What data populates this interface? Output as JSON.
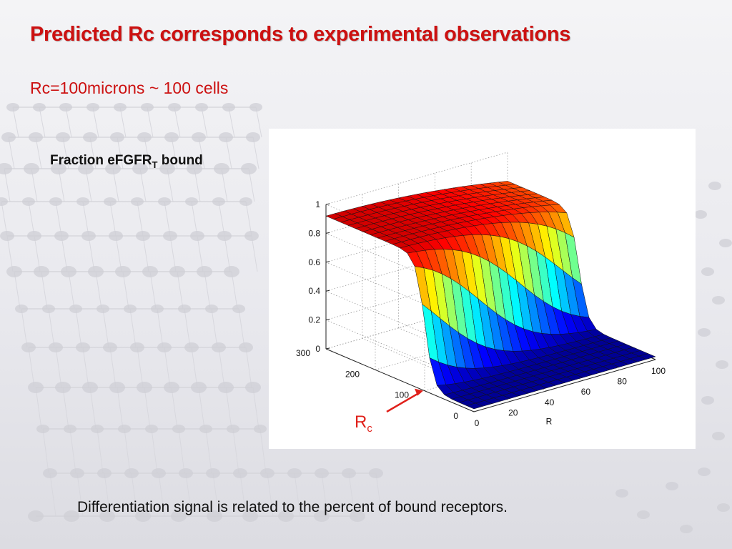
{
  "slide": {
    "title": "Predicted Rc corresponds to experimental observations",
    "subtitle": "Rc=100microns ~ 100 cells",
    "z_label_main": "Fraction eFGFR",
    "z_label_sub": "T",
    "z_label_tail": " bound",
    "footnote": "Differentiation signal is related to the percent of bound receptors.",
    "annotation": {
      "main": "R",
      "sub": "c"
    }
  },
  "colors": {
    "title": "#cc1111",
    "arrow": "#e0201a"
  },
  "chart_data": {
    "type": "surface",
    "title": "",
    "xlabel": "R",
    "ylabel": "",
    "zlabel": "Fraction eFGFR_T bound",
    "xlim": [
      0,
      100
    ],
    "ylim": [
      0,
      300
    ],
    "zlim": [
      0,
      1
    ],
    "x_ticks": [
      "0",
      "20",
      "40",
      "60",
      "80",
      "100"
    ],
    "y_ticks": [
      "0",
      "100",
      "200",
      "300"
    ],
    "z_ticks": [
      "0",
      "0.2",
      "0.4",
      "0.6",
      "0.8",
      "1"
    ],
    "grid": true,
    "colormap": "jet",
    "x": [
      0,
      5,
      10,
      15,
      20,
      25,
      30,
      35,
      40,
      45,
      50,
      55,
      60,
      65,
      70,
      75,
      80,
      85,
      90,
      95,
      100
    ],
    "y": [
      0,
      15,
      30,
      45,
      60,
      75,
      90,
      105,
      120,
      135,
      150,
      165,
      180,
      195,
      210,
      225,
      240,
      255,
      270,
      285,
      300
    ],
    "z_description": "Fraction bound ~0 for small Rc, steep sigmoidal rise near Rc ≈ 100, plateau ~0.9–1 for large Rc; at large R the rise is delayed and reduced.",
    "annotation_arrow_target": {
      "x": 0,
      "y": 100
    }
  }
}
